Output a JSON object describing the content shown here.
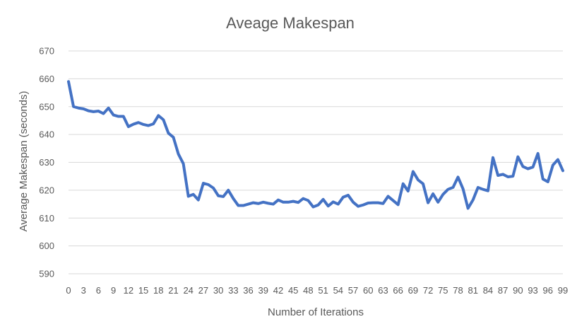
{
  "chart_data": {
    "type": "line",
    "title": "Aveage Makespan",
    "xlabel": "Number of Iterations",
    "ylabel": "Average Makespan (seconds)",
    "ylim": [
      590,
      670
    ],
    "yticks": [
      590,
      600,
      610,
      620,
      630,
      640,
      650,
      660,
      670
    ],
    "xticks": [
      0,
      3,
      6,
      9,
      12,
      15,
      18,
      21,
      24,
      27,
      30,
      33,
      36,
      39,
      42,
      45,
      48,
      51,
      54,
      57,
      60,
      63,
      66,
      69,
      72,
      75,
      78,
      81,
      84,
      87,
      90,
      93,
      96,
      99
    ],
    "grid": "horizontal",
    "legend": "none",
    "colors": {
      "line": "#4472C4",
      "grid": "#D9D9D9",
      "text": "#595959"
    },
    "series": [
      {
        "x": [
          0,
          1,
          2,
          3,
          4,
          5,
          6,
          7,
          8,
          9,
          10,
          11,
          12,
          13,
          14,
          15,
          16,
          17,
          18,
          19,
          20,
          21,
          22,
          23,
          24,
          25,
          26,
          27,
          28,
          29,
          30,
          31,
          32,
          33,
          34,
          35,
          36,
          37,
          38,
          39,
          40,
          41,
          42,
          43,
          44,
          45,
          46,
          47,
          48,
          49,
          50,
          51,
          52,
          53,
          54,
          55,
          56,
          57,
          58,
          59,
          60,
          61,
          62,
          63,
          64,
          65,
          66,
          67,
          68,
          69,
          70,
          71,
          72,
          73,
          74,
          75,
          76,
          77,
          78,
          79,
          80,
          81,
          82,
          83,
          84,
          85,
          86,
          87,
          88,
          89,
          90,
          91,
          92,
          93,
          94,
          95,
          96,
          97,
          98,
          99
        ],
        "values": [
          659.0,
          650.0,
          649.5,
          649.2,
          648.5,
          648.2,
          648.4,
          647.5,
          649.5,
          647.0,
          646.5,
          646.5,
          642.8,
          643.7,
          644.3,
          643.6,
          643.2,
          643.8,
          646.8,
          645.3,
          640.5,
          639.0,
          633.0,
          629.5,
          617.8,
          618.5,
          616.5,
          622.5,
          622.0,
          620.8,
          618.0,
          617.7,
          620.0,
          617.0,
          614.5,
          614.5,
          615.0,
          615.5,
          615.2,
          615.7,
          615.3,
          615.0,
          616.5,
          615.7,
          615.7,
          616.0,
          615.6,
          617.0,
          616.3,
          614.0,
          614.7,
          616.7,
          614.3,
          615.8,
          615.0,
          617.5,
          618.2,
          615.7,
          614.2,
          614.7,
          615.4,
          615.5,
          615.5,
          615.2,
          617.8,
          616.3,
          614.8,
          622.3,
          619.7,
          626.7,
          623.7,
          622.3,
          615.5,
          618.7,
          615.7,
          618.5,
          620.3,
          621.0,
          624.7,
          620.5,
          613.5,
          616.5,
          621.0,
          620.3,
          619.8,
          631.7,
          625.3,
          625.7,
          624.8,
          625.0,
          632.0,
          628.5,
          627.7,
          628.3,
          633.2,
          624.0,
          623.0,
          629.0,
          631.0,
          627.0
        ]
      }
    ]
  }
}
